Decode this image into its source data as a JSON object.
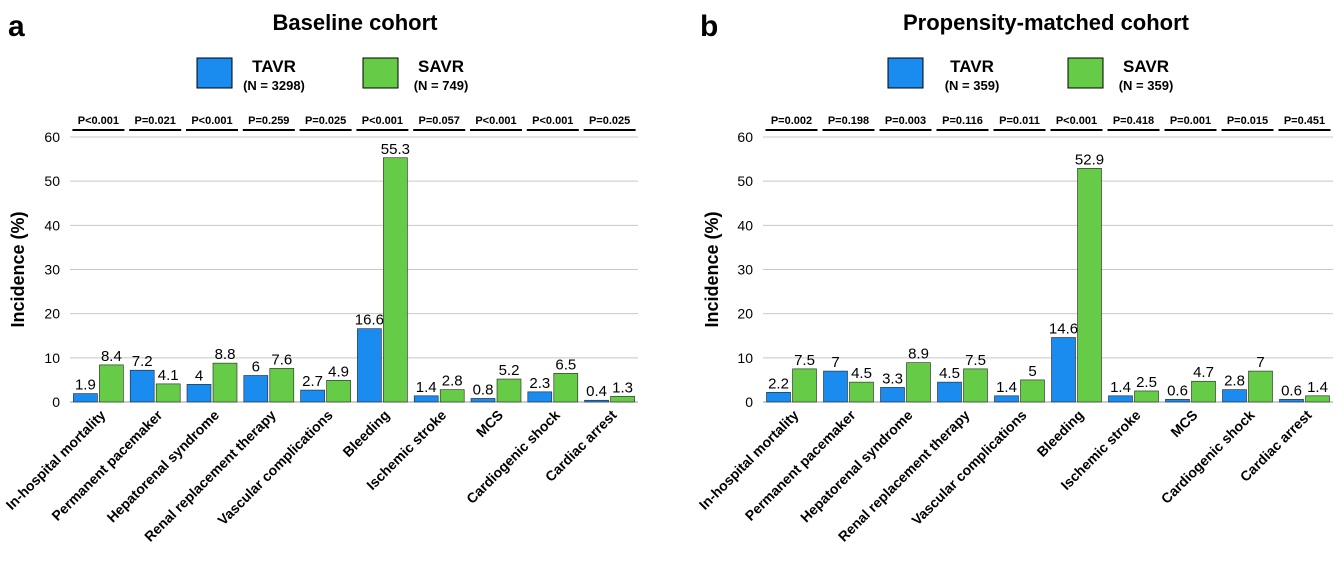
{
  "panels": [
    {
      "letter": "a",
      "title": "Baseline cohort",
      "legend": [
        {
          "name": "TAVR",
          "n": "(N = 3298)",
          "color": "#1a8cf0"
        },
        {
          "name": "SAVR",
          "n": "(N = 749)",
          "color": "#66cc47"
        }
      ]
    },
    {
      "letter": "b",
      "title": "Propensity-matched cohort",
      "legend": [
        {
          "name": "TAVR",
          "n": "(N = 359)",
          "color": "#1a8cf0"
        },
        {
          "name": "SAVR",
          "n": "(N = 359)",
          "color": "#66cc47"
        }
      ]
    }
  ],
  "chart_data": [
    {
      "type": "bar",
      "title": "Baseline cohort",
      "ylabel": "Incidence (%)",
      "ylim": [
        0,
        60
      ],
      "yticks": [
        0,
        10,
        20,
        30,
        40,
        50,
        60
      ],
      "grid": true,
      "legend_position": "top",
      "categories": [
        "In-hospital mortality",
        "Permanent pacemaker",
        "Hepatorenal syndrome",
        "Renal replacement therapy",
        "Vascular complications",
        "Bleeding",
        "Ischemic stroke",
        "MCS",
        "Cardiogenic shock",
        "Cardiac arrest"
      ],
      "series": [
        {
          "name": "TAVR",
          "color": "#1a8cf0",
          "values": [
            1.9,
            7.2,
            4,
            6,
            2.7,
            16.6,
            1.4,
            0.8,
            2.3,
            0.4
          ]
        },
        {
          "name": "SAVR",
          "color": "#66cc47",
          "values": [
            8.4,
            4.1,
            8.8,
            7.6,
            4.9,
            55.3,
            2.8,
            5.2,
            6.5,
            1.3
          ]
        }
      ],
      "p_values": [
        "P<0.001",
        "P=0.021",
        "P<0.001",
        "P=0.259",
        "P=0.025",
        "P<0.001",
        "P=0.057",
        "P<0.001",
        "P<0.001",
        "P=0.025"
      ]
    },
    {
      "type": "bar",
      "title": "Propensity-matched cohort",
      "ylabel": "Incidence (%)",
      "ylim": [
        0,
        60
      ],
      "yticks": [
        0,
        10,
        20,
        30,
        40,
        50,
        60
      ],
      "grid": true,
      "legend_position": "top",
      "categories": [
        "In-hospital mortality",
        "Permanent pacemaker",
        "Hepatorenal syndrome",
        "Renal replacement therapy",
        "Vascular complications",
        "Bleeding",
        "Ischemic stroke",
        "MCS",
        "Cardiogenic shock",
        "Cardiac arrest"
      ],
      "series": [
        {
          "name": "TAVR",
          "color": "#1a8cf0",
          "values": [
            2.2,
            7,
            3.3,
            4.5,
            1.4,
            14.6,
            1.4,
            0.6,
            2.8,
            0.6
          ]
        },
        {
          "name": "SAVR",
          "color": "#66cc47",
          "values": [
            7.5,
            4.5,
            8.9,
            7.5,
            5,
            52.9,
            2.5,
            4.7,
            7,
            1.4
          ]
        }
      ],
      "p_values": [
        "P=0.002",
        "P=0.198",
        "P=0.003",
        "P=0.116",
        "P=0.011",
        "P<0.001",
        "P=0.418",
        "P=0.001",
        "P=0.015",
        "P=0.451"
      ]
    }
  ]
}
